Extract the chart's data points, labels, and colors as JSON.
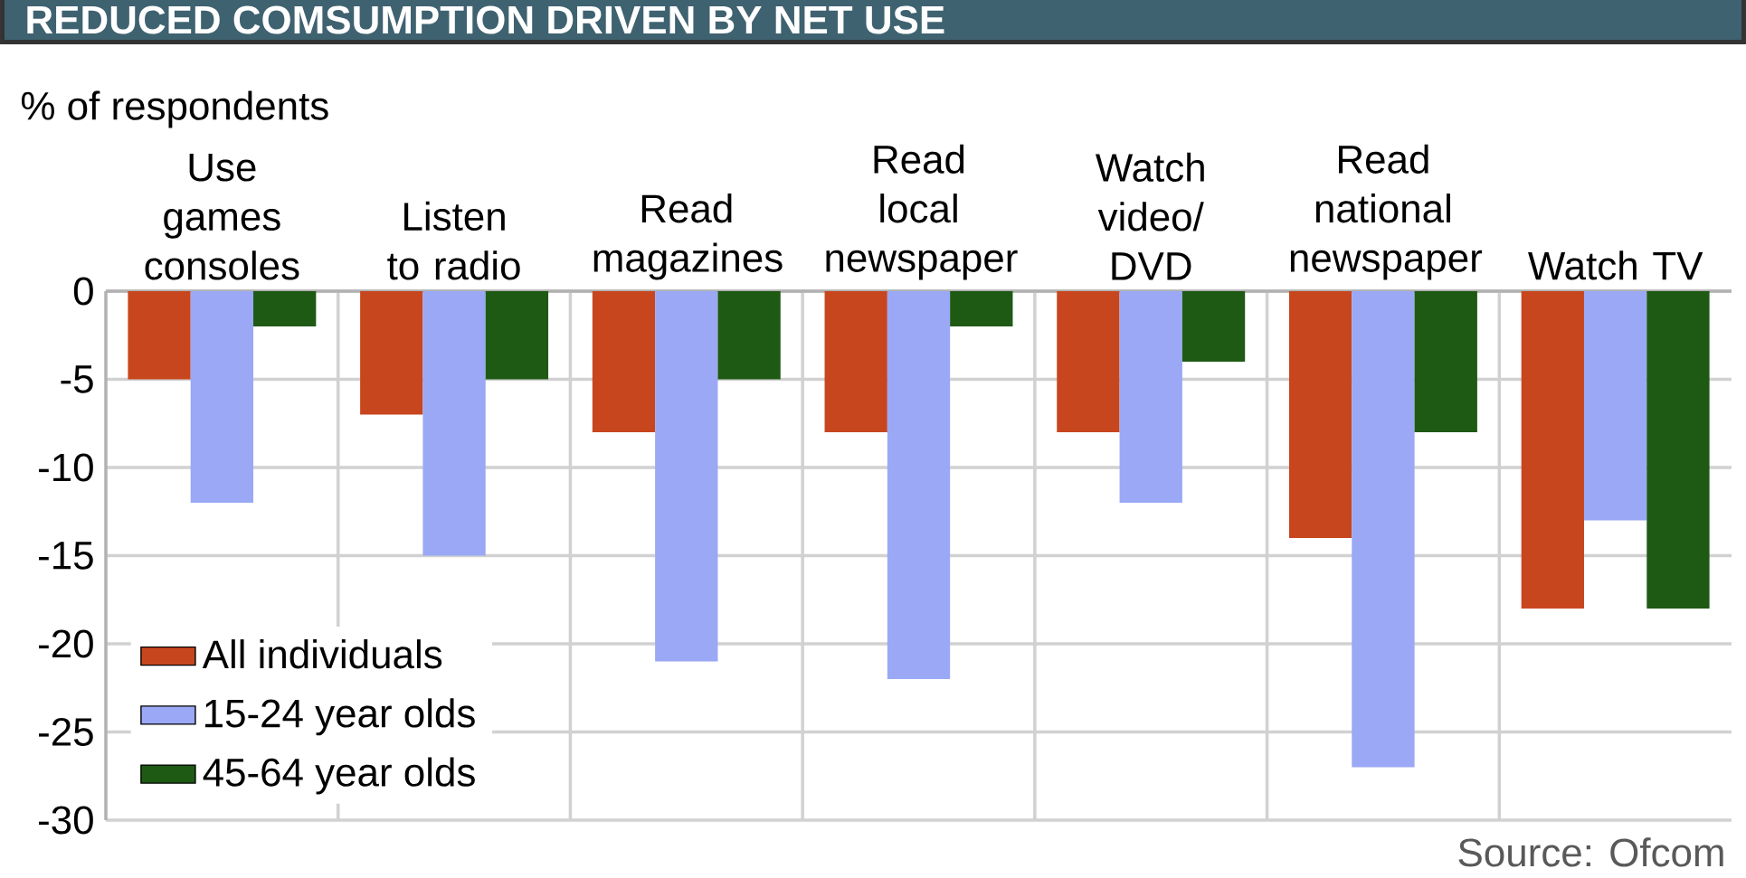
{
  "chart_data": {
    "type": "bar",
    "title": "REDUCED COMSUMPTION DRIVEN BY NET USE",
    "ylabel": "% of respondents",
    "categories": [
      "Use games consoles",
      "Listen to radio",
      "Read magazines",
      "Read local newspaper",
      "Watch video/ DVD",
      "Read national newspaper",
      "Watch TV"
    ],
    "series": [
      {
        "name": "All individuals",
        "color": "#c8461e",
        "values": [
          -5,
          -7,
          -8,
          -8,
          -8,
          -14,
          -18
        ]
      },
      {
        "name": "15-24 year olds",
        "color": "#9aa8f5",
        "values": [
          -12,
          -15,
          -21,
          -22,
          -12,
          -27,
          -13
        ]
      },
      {
        "name": "45-64 year olds",
        "color": "#1e5a14",
        "values": [
          -2,
          -5,
          -5,
          -2,
          -4,
          -8,
          -18
        ]
      }
    ],
    "ylim": [
      -30,
      0
    ],
    "yticks": [
      0,
      -5,
      -10,
      -15,
      -20,
      -25,
      -30
    ],
    "grid": true,
    "legend": "bottom left",
    "annotations": [
      "Source: Ofcom"
    ]
  }
}
